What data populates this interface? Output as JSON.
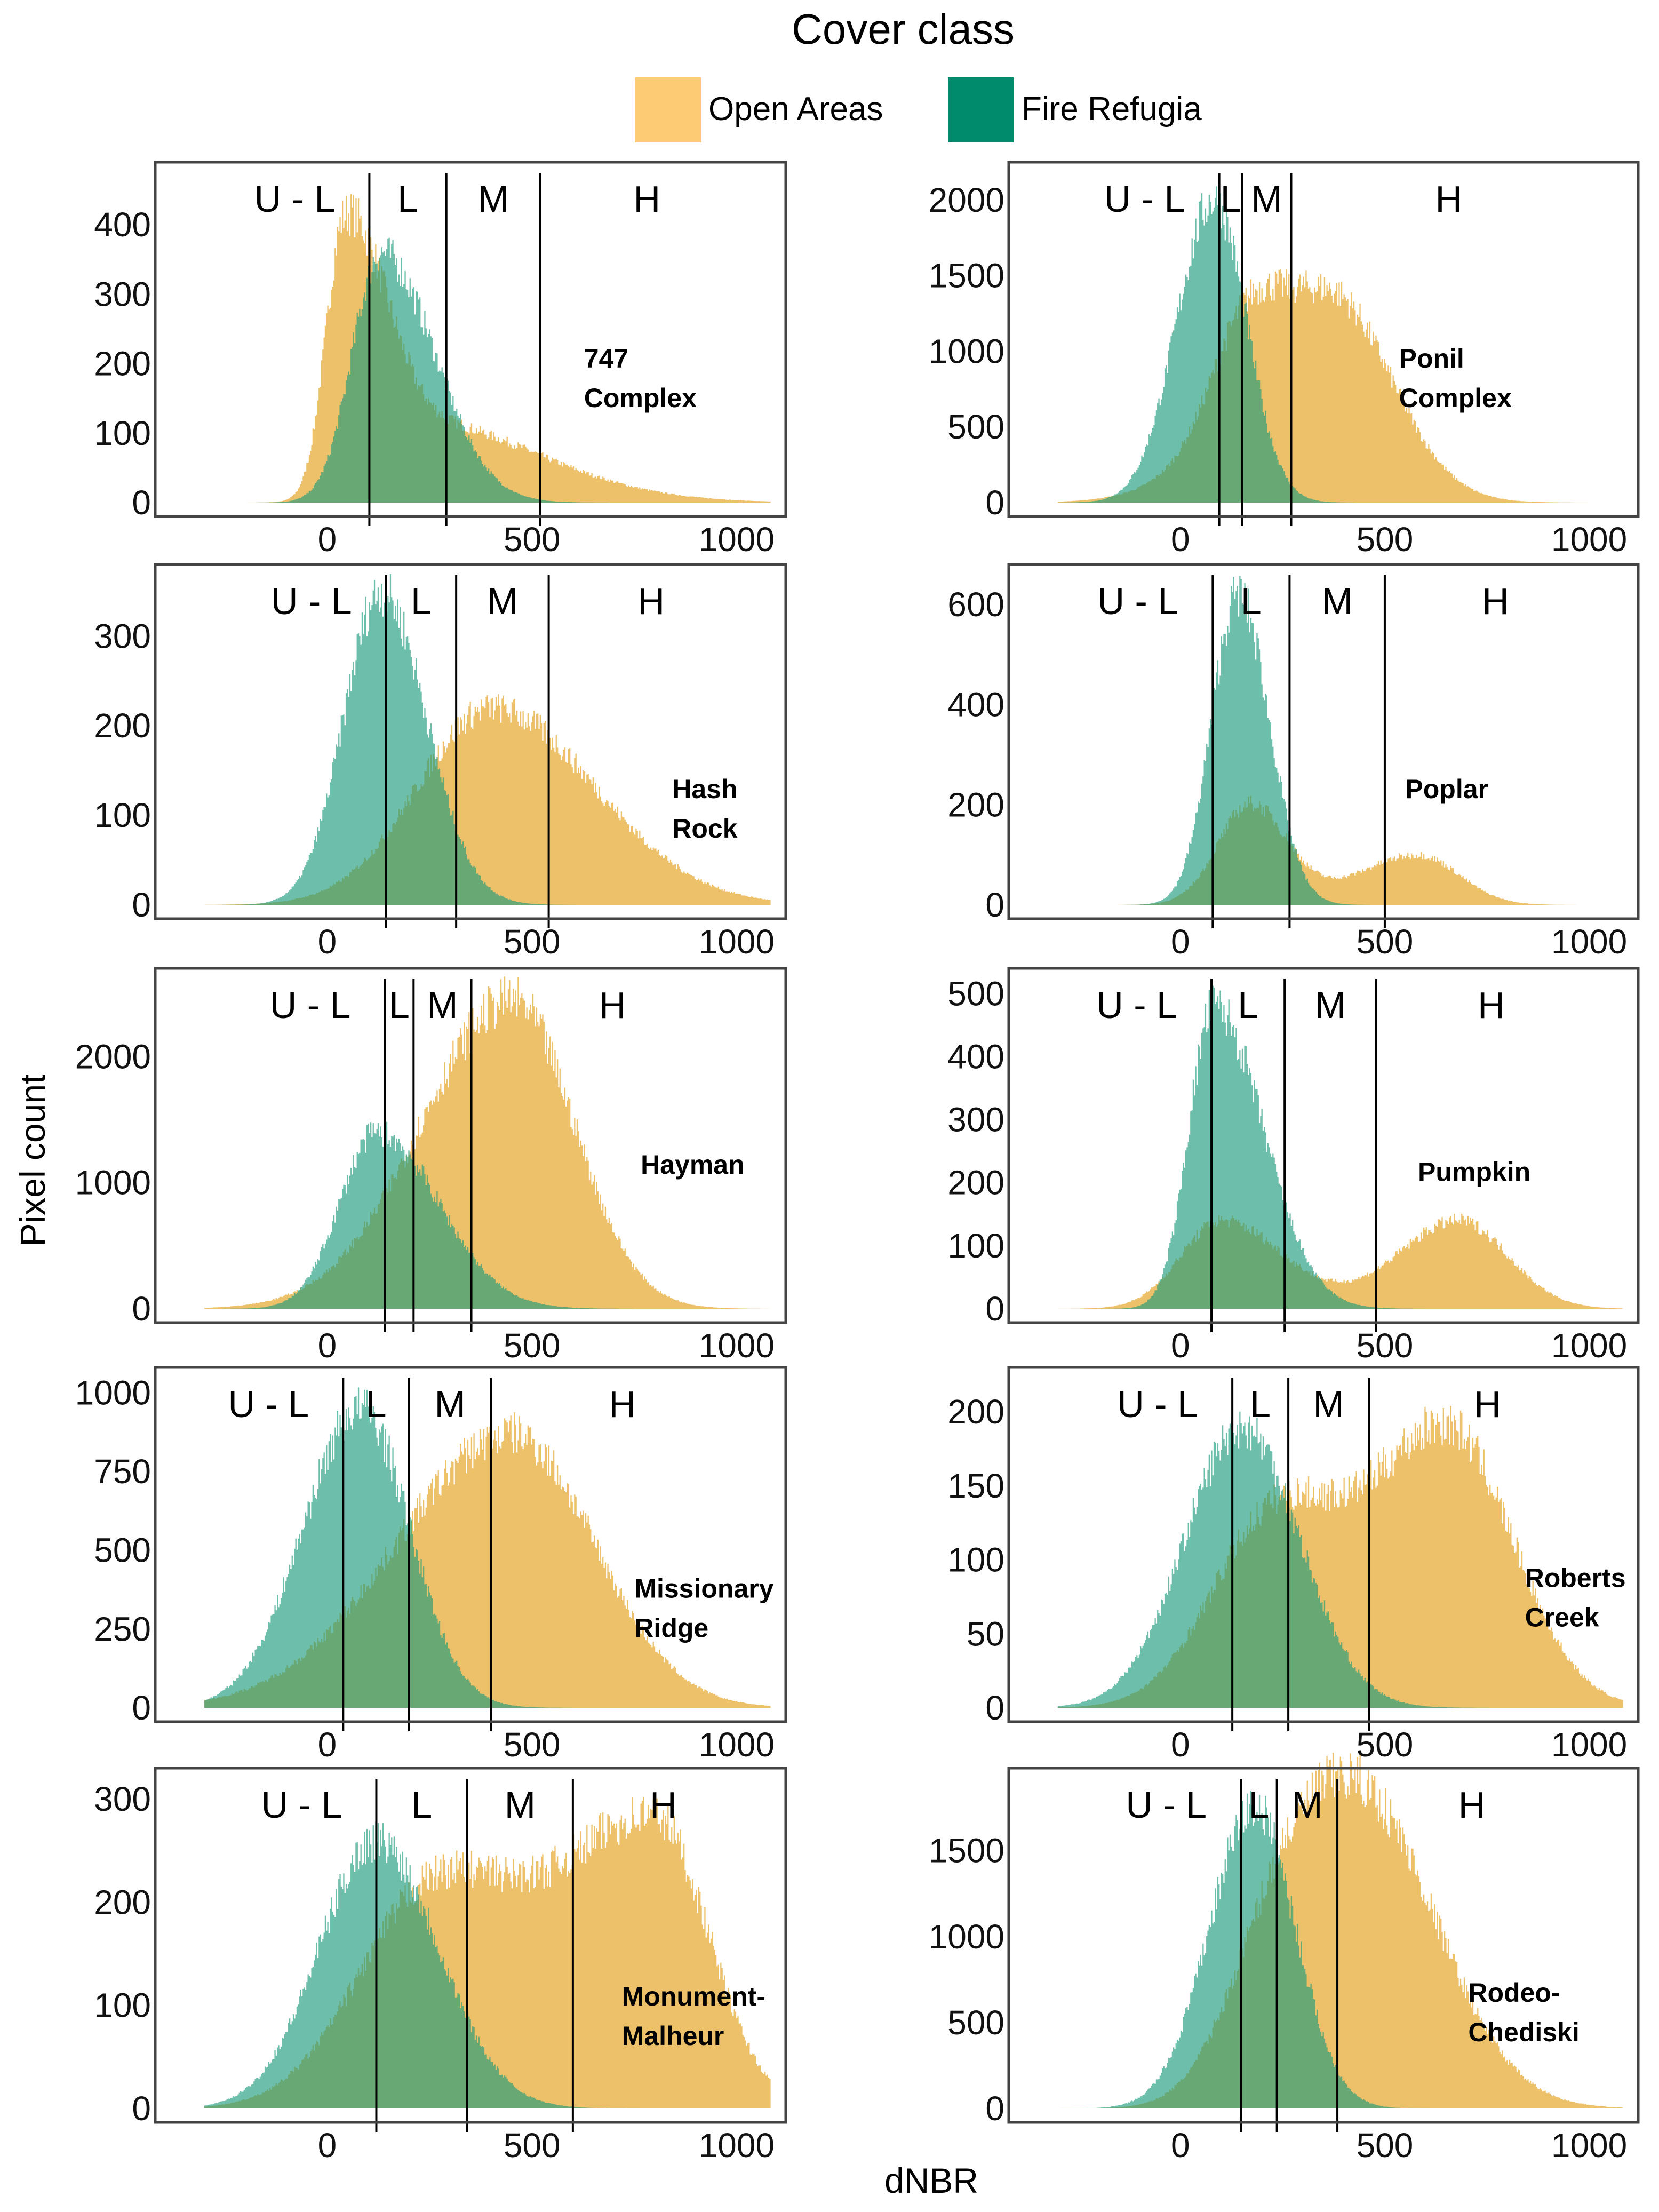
{
  "legend": {
    "title": "Cover class",
    "items": [
      {
        "label": "Open Areas",
        "color": "#FDCB74"
      },
      {
        "label": "Fire Refugia",
        "color": "#008C6C"
      }
    ]
  },
  "chart_data": {
    "type": "area",
    "title": "Cover class",
    "xlabel": "dNBR",
    "ylabel": "Pixel count",
    "xlim": [
      -420,
      1120
    ],
    "xticks": [
      0,
      500,
      1000
    ],
    "band_labels": [
      "U - L",
      "L",
      "M",
      "H"
    ],
    "series_colors": {
      "Open Areas": "#ECBC5C",
      "Fire Refugia": "#1A9A7A"
    },
    "panels": [
      {
        "name": "747 Complex",
        "ylim": [
          0,
          490
        ],
        "yticks": [
          0,
          100,
          200,
          300,
          400
        ],
        "thresholds": [
          103,
          291,
          520
        ],
        "open": [
          {
            "a": 380,
            "mu": 40,
            "sl": 45,
            "sr": 90
          },
          {
            "a": 120,
            "mu": 200,
            "sl": 100,
            "sr": 300
          }
        ],
        "refugia": [
          {
            "a": 360,
            "mu": 130,
            "sl": 70,
            "sr": 130
          }
        ]
      },
      {
        "name": "Ponil Complex",
        "ylim": [
          0,
          2250
        ],
        "yticks": [
          0,
          500,
          1000,
          1500,
          2000
        ],
        "thresholds": [
          95,
          151,
          271
        ],
        "open": [
          {
            "a": 1400,
            "mu": 360,
            "sl": 200,
            "sr": 150
          },
          {
            "a": 500,
            "mu": 150,
            "sl": 80,
            "sr": 80
          }
        ],
        "refugia": [
          {
            "a": 2000,
            "mu": 80,
            "sl": 90,
            "sr": 80
          }
        ]
      },
      {
        "name": "Hash Rock",
        "ylim": [
          0,
          380
        ],
        "yticks": [
          0,
          100,
          200,
          300
        ],
        "thresholds": [
          144,
          315,
          541
        ],
        "open": [
          {
            "a": 220,
            "mu": 400,
            "sl": 180,
            "sr": 250
          }
        ],
        "refugia": [
          {
            "a": 350,
            "mu": 130,
            "sl": 90,
            "sr": 110
          }
        ]
      },
      {
        "name": "Poplar",
        "ylim": [
          0,
          680
        ],
        "yticks": [
          0,
          200,
          400,
          600
        ],
        "thresholds": [
          79,
          267,
          500
        ],
        "open": [
          {
            "a": 200,
            "mu": 170,
            "sl": 80,
            "sr": 90
          },
          {
            "a": 100,
            "mu": 580,
            "sl": 150,
            "sr": 100
          }
        ],
        "refugia": [
          {
            "a": 620,
            "mu": 140,
            "sl": 65,
            "sr": 75
          }
        ]
      },
      {
        "name": "Hayman",
        "ylim": [
          0,
          2700
        ],
        "yticks": [
          0,
          1000,
          2000
        ],
        "thresholds": [
          141,
          211,
          352
        ],
        "open": [
          {
            "a": 2450,
            "mu": 450,
            "sl": 220,
            "sr": 150
          }
        ],
        "refugia": [
          {
            "a": 1400,
            "mu": 120,
            "sl": 90,
            "sr": 150
          }
        ]
      },
      {
        "name": "Pumpkin",
        "ylim": [
          0,
          540
        ],
        "yticks": [
          0,
          100,
          200,
          300,
          400,
          500
        ],
        "thresholds": [
          76,
          255,
          479
        ],
        "open": [
          {
            "a": 140,
            "mu": 100,
            "sl": 100,
            "sr": 150
          },
          {
            "a": 140,
            "mu": 680,
            "sl": 150,
            "sr": 120
          }
        ],
        "refugia": [
          {
            "a": 480,
            "mu": 80,
            "sl": 60,
            "sr": 120
          }
        ]
      },
      {
        "name": "Missionary Ridge",
        "ylim": [
          0,
          1080
        ],
        "yticks": [
          0,
          250,
          500,
          750,
          1000
        ],
        "thresholds": [
          39,
          200,
          400
        ],
        "open": [
          {
            "a": 870,
            "mu": 450,
            "sl": 280,
            "sr": 200
          }
        ],
        "refugia": [
          {
            "a": 950,
            "mu": 80,
            "sl": 140,
            "sr": 120
          }
        ]
      },
      {
        "name": "Roberts Creek",
        "ylim": [
          0,
          230
        ],
        "yticks": [
          0,
          50,
          100,
          150,
          200
        ],
        "thresholds": [
          127,
          264,
          461
        ],
        "open": [
          {
            "a": 190,
            "mu": 650,
            "sl": 200,
            "sr": 160
          },
          {
            "a": 120,
            "mu": 220,
            "sl": 150,
            "sr": 150
          }
        ],
        "refugia": [
          {
            "a": 190,
            "mu": 150,
            "sl": 140,
            "sr": 140
          }
        ]
      },
      {
        "name": "Monument-Malheur",
        "ylim": [
          0,
          330
        ],
        "yticks": [
          0,
          100,
          200,
          300
        ],
        "thresholds": [
          120,
          342,
          600
        ],
        "open": [
          {
            "a": 280,
            "mu": 800,
            "sl": 250,
            "sr": 130
          },
          {
            "a": 200,
            "mu": 250,
            "sl": 180,
            "sr": 200
          }
        ],
        "refugia": [
          {
            "a": 260,
            "mu": 120,
            "sl": 140,
            "sr": 150
          }
        ]
      },
      {
        "name": "Rodeo-Chediski",
        "ylim": [
          0,
          1980
        ],
        "yticks": [
          0,
          500,
          1000,
          1500
        ],
        "thresholds": [
          148,
          236,
          384
        ],
        "open": [
          {
            "a": 1850,
            "mu": 430,
            "sl": 160,
            "sr": 190
          },
          {
            "a": 600,
            "mu": 220,
            "sl": 120,
            "sr": 100
          }
        ],
        "refugia": [
          {
            "a": 1750,
            "mu": 180,
            "sl": 110,
            "sr": 100
          }
        ]
      }
    ]
  }
}
